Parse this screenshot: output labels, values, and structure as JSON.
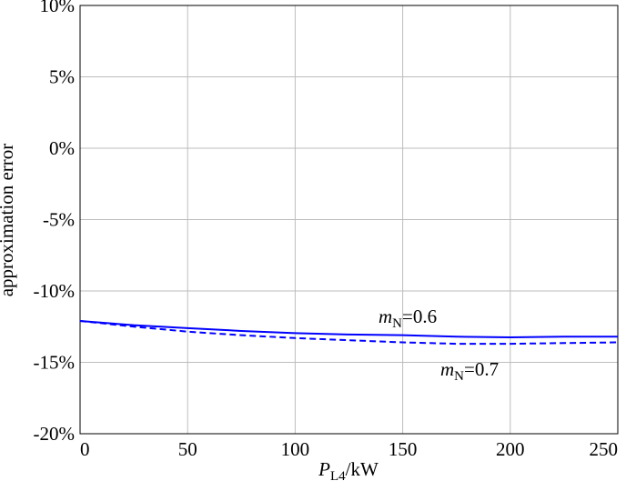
{
  "chart_data": {
    "type": "line",
    "y_label": "approximation error",
    "x_label": {
      "italic": "P",
      "sub": "L4",
      "text": "/kW"
    },
    "x": [
      0,
      25,
      50,
      75,
      100,
      125,
      150,
      175,
      200,
      225,
      250
    ],
    "series": [
      {
        "color": "#0000ff",
        "linestyle": "solid",
        "values": [
          -12.1,
          -12.4,
          -12.6,
          -12.8,
          -12.95,
          -13.05,
          -13.1,
          -13.2,
          -13.25,
          -13.2,
          -13.2
        ]
      },
      {
        "color": "#0000ff",
        "linestyle": "dashed",
        "values": [
          -12.1,
          -12.5,
          -12.85,
          -13.1,
          -13.3,
          -13.45,
          -13.6,
          -13.7,
          -13.7,
          -13.65,
          -13.6
        ]
      }
    ],
    "annotations": [
      {
        "italic": "m",
        "sub": "N",
        "text": "=0.6"
      },
      {
        "italic": "m",
        "sub": "N",
        "text": "=0.7"
      }
    ],
    "xlim": [
      0,
      250
    ],
    "xticks": [
      0,
      50,
      100,
      150,
      200,
      250
    ],
    "ylim": [
      -20,
      10
    ],
    "yticks": [
      {
        "value": -20,
        "label": "-20%"
      },
      {
        "value": -15,
        "label": "-15%"
      },
      {
        "value": -10,
        "label": "-10%"
      },
      {
        "value": -5,
        "label": "-5%"
      },
      {
        "value": 0,
        "label": "0%"
      },
      {
        "value": 5,
        "label": "5%"
      },
      {
        "value": 10,
        "label": "10%"
      }
    ],
    "grid": true
  }
}
